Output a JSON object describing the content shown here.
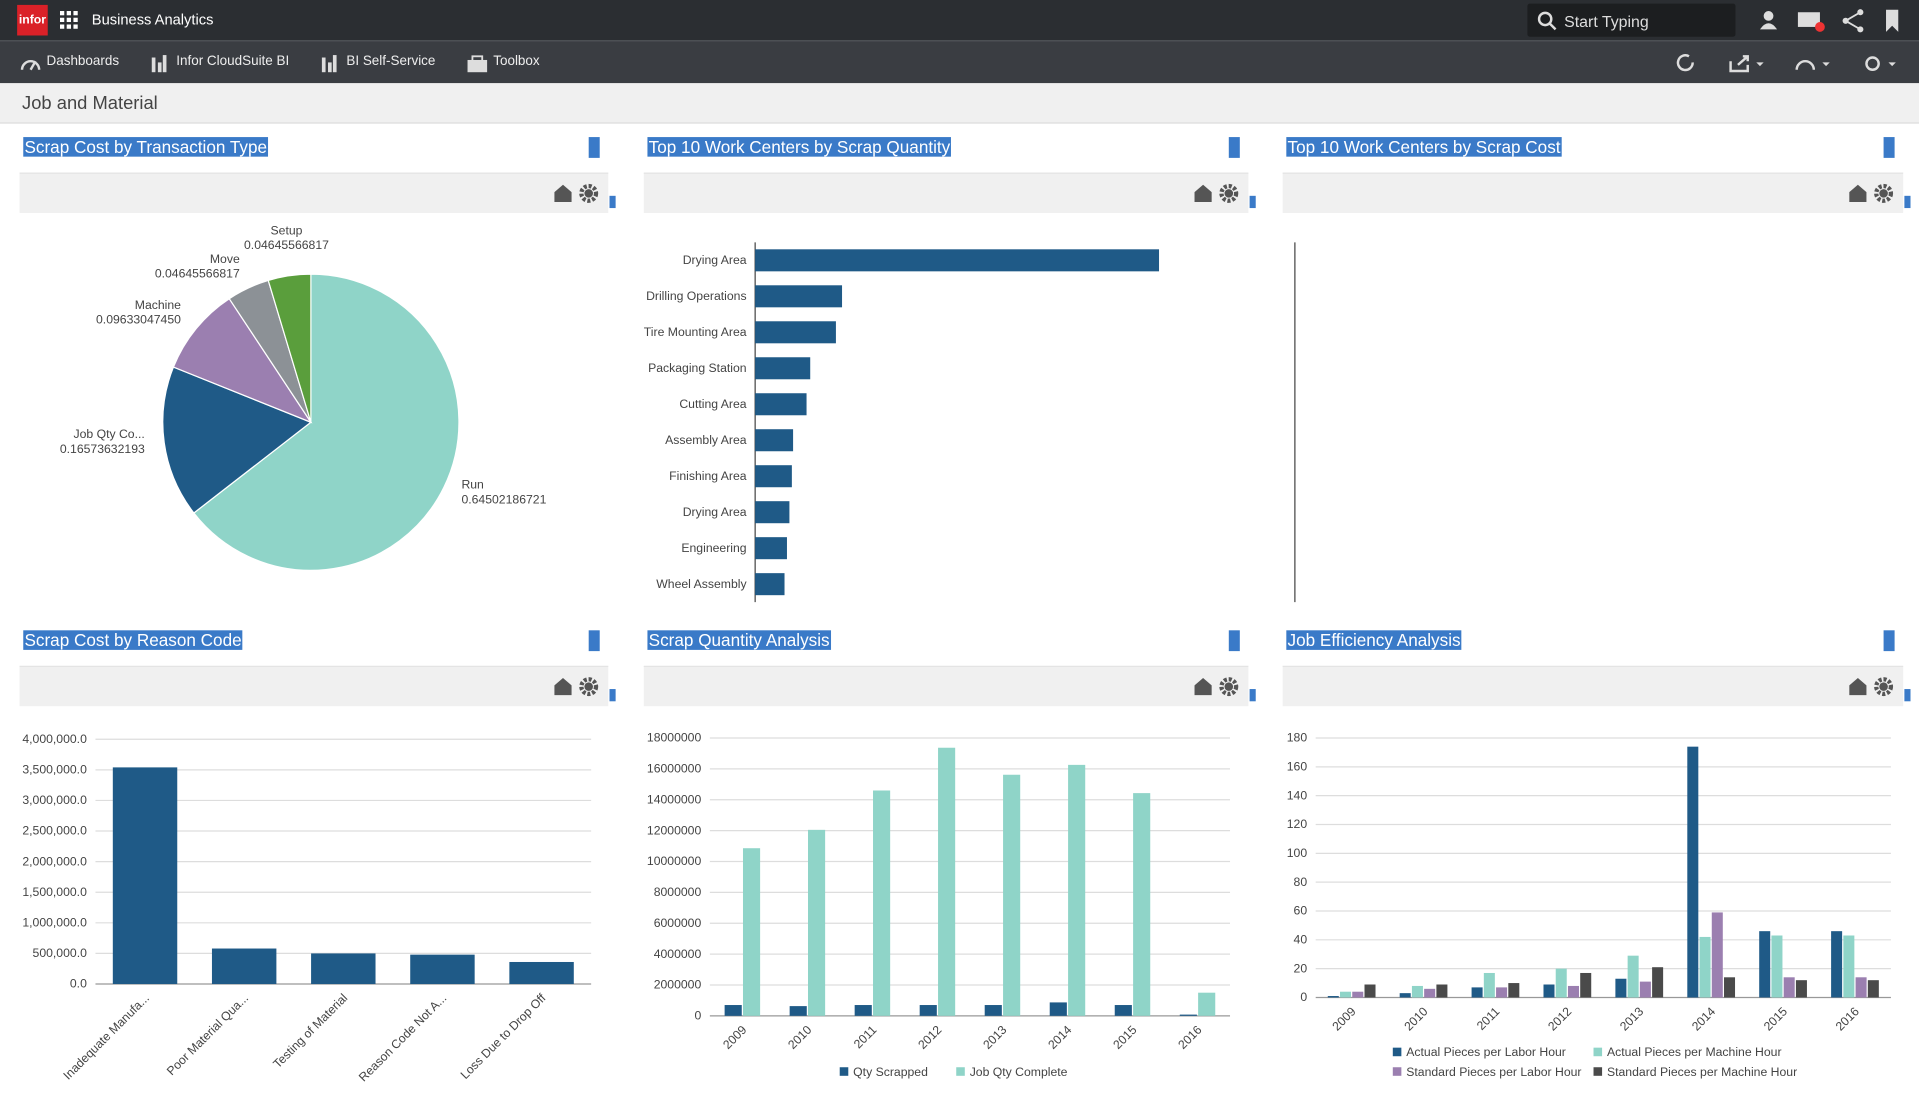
{
  "header": {
    "logo": "infor",
    "app_name": "Business Analytics",
    "search_placeholder": "Start Typing"
  },
  "nav": {
    "items": [
      "Dashboards",
      "Infor CloudSuite BI",
      "BI Self-Service",
      "Toolbox"
    ]
  },
  "page_title": "Job and Material",
  "chart_data": [
    {
      "type": "pie",
      "title": "Scrap Cost by Transaction Type",
      "categories": [
        "Run",
        "Job Qty Co...",
        "Machine",
        "Move",
        "Setup"
      ],
      "values": [
        0.64502186721,
        0.16573632193,
        0.0963304745,
        0.04645566817,
        0.04645566817
      ],
      "value_labels": [
        "0.64502186721",
        "0.16573632193",
        "0.09633047450",
        "0.04645566817",
        "0.04645566817"
      ],
      "colors": [
        "#8fd4c8",
        "#1f5a87",
        "#9b7fb0",
        "#8c9196",
        "#5a9e3c"
      ]
    },
    {
      "type": "bar",
      "orientation": "horizontal",
      "title": "Top 10 Work Centers by Scrap Quantity",
      "categories": [
        "Drying Area",
        "Drilling Operations",
        "Tire Mounting Area",
        "Packaging Station",
        "Cutting Area",
        "Assembly Area",
        "Finishing Area",
        "Drying Area",
        "Engineering",
        "Wheel Assembly"
      ],
      "values": [
        330,
        71,
        66,
        45,
        42,
        31,
        30,
        28,
        26,
        24
      ],
      "color": "#1f5a87"
    },
    {
      "type": "bar",
      "orientation": "horizontal",
      "title": "Top 10 Work Centers by Scrap Cost",
      "categories": [],
      "values": [],
      "color": "#1f5a87"
    },
    {
      "type": "bar",
      "title": "Scrap Cost by Reason Code",
      "categories": [
        "Inadequate Manufa...",
        "Poor Material Qua...",
        "Testing of Material",
        "Reason Code Not A...",
        "Loss Due to Drop Off"
      ],
      "values": [
        3540000,
        580000,
        500000,
        480000,
        360000
      ],
      "color": "#1f5a87",
      "ylim": [
        0,
        4000000
      ],
      "yticks": [
        {
          "value": 0,
          "label": "0.0"
        },
        {
          "value": 500000,
          "label": "500,000.0"
        },
        {
          "value": 1000000,
          "label": "1,000,000.0"
        },
        {
          "value": 1500000,
          "label": "1,500,000.0"
        },
        {
          "value": 2000000,
          "label": "2,000,000.0"
        },
        {
          "value": 2500000,
          "label": "2,500,000.0"
        },
        {
          "value": 3000000,
          "label": "3,000,000.0"
        },
        {
          "value": 3500000,
          "label": "3,500,000.0"
        },
        {
          "value": 4000000,
          "label": "4,000,000.0"
        }
      ],
      "grid": true
    },
    {
      "type": "grouped_bar",
      "title": "Scrap Quantity Analysis",
      "categories": [
        "2009",
        "2010",
        "2011",
        "2012",
        "2013",
        "2014",
        "2015",
        "2016"
      ],
      "series": [
        {
          "name": "Qty Scrapped",
          "color": "#1f5a87",
          "values": [
            700000,
            630000,
            700000,
            700000,
            700000,
            870000,
            700000,
            80000
          ]
        },
        {
          "name": "Job Qty Complete",
          "color": "#8fd4c8",
          "values": [
            10860000,
            12050000,
            14600000,
            17370000,
            15620000,
            16260000,
            14430000,
            1500000
          ]
        }
      ],
      "ylim": [
        0,
        18000000
      ],
      "yticks": [
        0,
        2000000,
        4000000,
        6000000,
        8000000,
        10000000,
        12000000,
        14000000,
        16000000,
        18000000
      ],
      "grid": true,
      "legend": "bottom"
    },
    {
      "type": "grouped_bar",
      "title": "Job Efficiency Analysis",
      "categories": [
        "2009",
        "2010",
        "2011",
        "2012",
        "2013",
        "2014",
        "2015",
        "2016"
      ],
      "series": [
        {
          "name": "Actual Pieces per Labor Hour",
          "color": "#1f5a87",
          "values": [
            1,
            3,
            7,
            9,
            13,
            174,
            46,
            46
          ]
        },
        {
          "name": "Actual Pieces per Machine Hour",
          "color": "#8fd4c8",
          "values": [
            4,
            8,
            17,
            20,
            29,
            42,
            43,
            43
          ]
        },
        {
          "name": "Standard Pieces per Labor Hour",
          "color": "#9b7fb0",
          "values": [
            4,
            6,
            7,
            8,
            11,
            59,
            14,
            14
          ]
        },
        {
          "name": "Standard Pieces per Machine Hour",
          "color": "#4a4a4a",
          "values": [
            9,
            9,
            10,
            17,
            21,
            14,
            12,
            12
          ]
        }
      ],
      "ylim": [
        0,
        180
      ],
      "yticks": [
        0,
        20,
        40,
        60,
        80,
        100,
        120,
        140,
        160,
        180
      ],
      "grid": true,
      "legend": "bottom"
    }
  ]
}
